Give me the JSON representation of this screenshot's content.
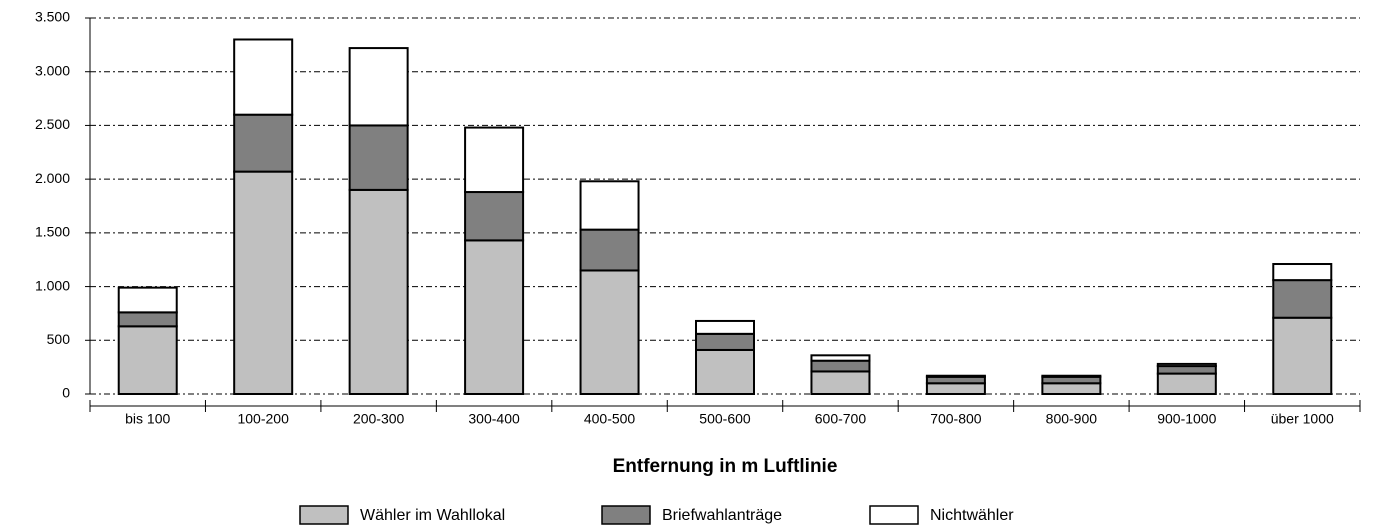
{
  "chart_data": {
    "type": "stacked_bar",
    "xlabel": "Entfernung in m Luftlinie",
    "categories": [
      "bis 100",
      "100-200",
      "200-300",
      "300-400",
      "400-500",
      "500-600",
      "600-700",
      "700-800",
      "800-900",
      "900-1000",
      "über 1000"
    ],
    "series": [
      {
        "name": "Wähler im Wahllokal",
        "color": "#c0c0c0",
        "values": [
          630,
          2070,
          1900,
          1430,
          1150,
          410,
          210,
          100,
          100,
          190,
          710
        ]
      },
      {
        "name": "Briefwahlanträge",
        "color": "#808080",
        "values": [
          130,
          530,
          600,
          450,
          380,
          150,
          100,
          60,
          60,
          70,
          350
        ]
      },
      {
        "name": "Nichtwähler",
        "color": "#ffffff",
        "values": [
          230,
          700,
          720,
          600,
          450,
          120,
          50,
          10,
          10,
          20,
          150
        ]
      }
    ],
    "ylim": [
      0,
      3500
    ],
    "yticks": [
      0,
      500,
      {
        "value": 1000,
        "label": "1.000"
      },
      {
        "value": 1500,
        "label": "1.500"
      },
      {
        "value": 2000,
        "label": "2.000"
      },
      {
        "value": 2500,
        "label": "2.500"
      },
      {
        "value": 3000,
        "label": "3.000"
      },
      {
        "value": 3500,
        "label": "3.500"
      }
    ],
    "grid": true,
    "legend": "bottom"
  }
}
